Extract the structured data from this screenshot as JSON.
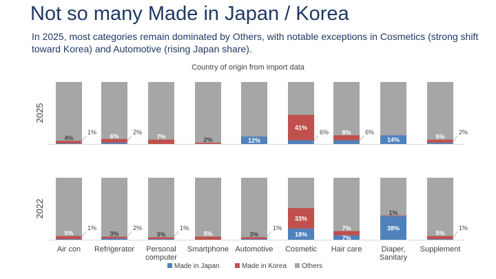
{
  "title": "Not so many Made in Japan / Korea",
  "subtitle": "In 2025, most categories remain dominated by Others, with notable exceptions in Cosmetics (strong shift toward Korea) and Automotive (rising Japan share).",
  "chart_data": {
    "type": "bar",
    "stacked": true,
    "title": "Country of origin from import data",
    "categories": [
      [
        "Air con"
      ],
      [
        "Refrigerator"
      ],
      [
        "Personal",
        "computer"
      ],
      [
        "Smartphone"
      ],
      [
        "Automotive"
      ],
      [
        "Cosmetic"
      ],
      [
        "Hair care"
      ],
      [
        "Diaper,",
        "Sanitary"
      ],
      [
        "Supplement"
      ]
    ],
    "legend": [
      "Made in Japan",
      "Made in Korea",
      "Others"
    ],
    "colors": {
      "japan": "#4f81bd",
      "korea": "#c0504d",
      "others": "#a6a6a6"
    },
    "ylim": [
      0,
      100
    ],
    "panels": [
      {
        "label": "2025",
        "japan": [
          1,
          2,
          0,
          0,
          12,
          6,
          6,
          14,
          2
        ],
        "korea": [
          4,
          6,
          7,
          2,
          0,
          41,
          8,
          0,
          5
        ],
        "japan_labels": [
          "1%",
          "2%",
          "",
          "",
          "12%",
          "6%",
          "6%",
          "14%",
          "2%"
        ],
        "korea_labels": [
          "4%",
          "6%",
          "7%",
          "2%",
          "",
          "41%",
          "8%",
          "",
          "5%"
        ]
      },
      {
        "label": "2022",
        "japan": [
          1,
          2,
          1,
          0,
          1,
          18,
          7,
          38,
          1
        ],
        "korea": [
          5,
          3,
          3,
          5,
          3,
          33,
          7,
          1,
          5
        ],
        "japan_labels": [
          "1%",
          "2%",
          "1%",
          "",
          "1%",
          "18%",
          "7%",
          "38%",
          "1%"
        ],
        "korea_labels": [
          "5%",
          "3%",
          "3%",
          "5%",
          "3%",
          "33%",
          "7%",
          "1%",
          "5%"
        ]
      }
    ]
  }
}
